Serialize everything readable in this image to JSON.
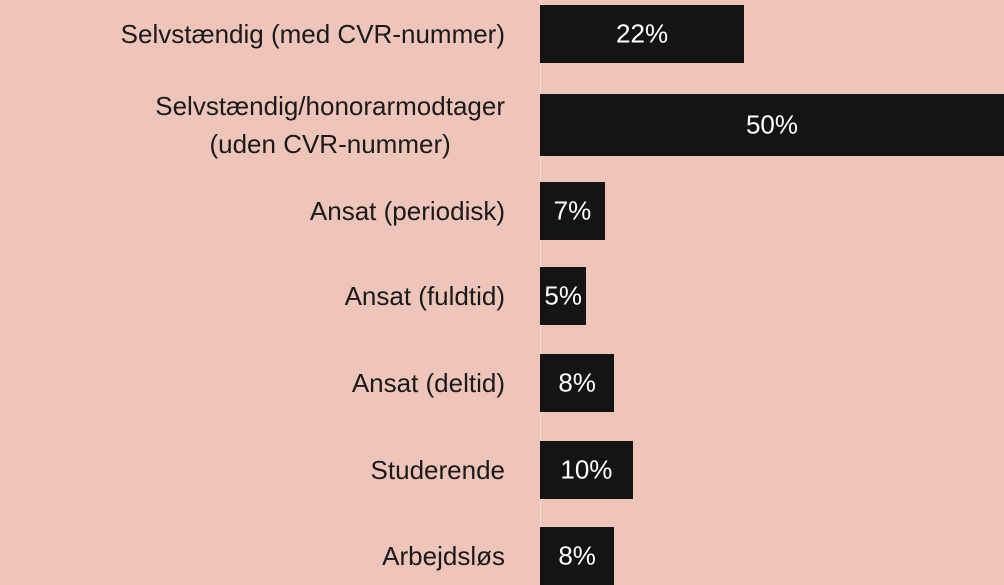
{
  "chart_data": {
    "type": "bar",
    "orientation": "horizontal",
    "categories": [
      "Selvstændig (med CVR-nummer)",
      "Selvstændig/honorarmodtager\n(uden CVR-nummer)",
      "Ansat (periodisk)",
      "Ansat (fuldtid)",
      "Ansat (deltid)",
      "Studerende",
      "Arbejdsløs"
    ],
    "values": [
      22,
      50,
      7,
      5,
      8,
      10,
      8
    ],
    "value_labels": [
      "22%",
      "50%",
      "7%",
      "5%",
      "8%",
      "10%",
      "8%"
    ],
    "color": "#141414",
    "xlim": [
      0,
      50
    ]
  }
}
